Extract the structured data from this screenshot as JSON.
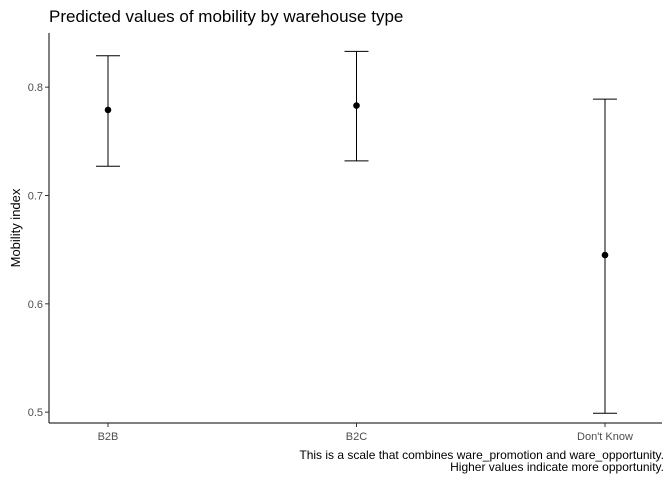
{
  "chart_data": {
    "type": "errorbar",
    "title": "Predicted values of mobility by warehouse type",
    "ylabel": "Mobility index",
    "xlabel": "",
    "categories": [
      "B2B",
      "B2C",
      "Don't Know"
    ],
    "estimates": [
      0.779,
      0.783,
      0.645
    ],
    "lower": [
      0.727,
      0.732,
      0.499
    ],
    "upper": [
      0.829,
      0.833,
      0.789
    ],
    "yticks": [
      "0.5",
      "0.6",
      "0.7",
      "0.8"
    ],
    "ylim": [
      0.49,
      0.85
    ],
    "grid": false,
    "caption": [
      "This is a scale that combines ware_promotion and ware_opportunity.",
      "Higher values indicate more opportunity."
    ]
  }
}
